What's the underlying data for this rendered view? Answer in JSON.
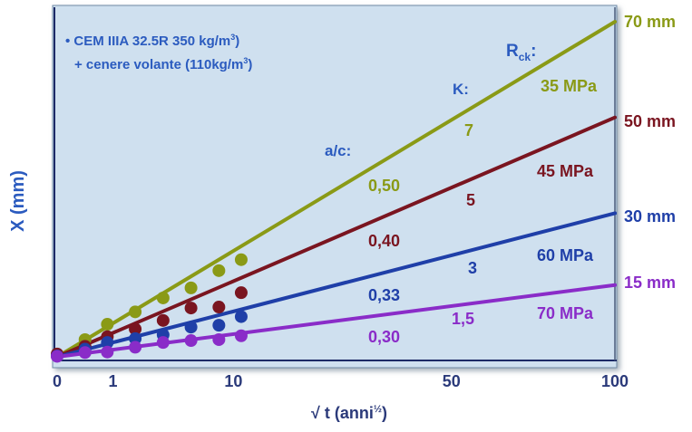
{
  "chart_data": {
    "type": "line",
    "xlabel_main": "√ t (anni",
    "xlabel_sup": "½",
    "xlabel_close": ")",
    "ylabel": "X (mm)",
    "x_ticks": [
      {
        "label": "0",
        "value": 0
      },
      {
        "label": "1",
        "value": 1
      },
      {
        "label": "10",
        "value": 3.16
      },
      {
        "label": "50",
        "value": 7.07
      },
      {
        "label": "100",
        "value": 10
      }
    ],
    "xlim": [
      0,
      10
    ],
    "ylim": [
      0,
      70
    ],
    "legend": {
      "line1_main": "• CEM IIIA 32.5R 350 kg/m",
      "line1_sup": "3",
      "line1_close": ")",
      "line2_main": "+ cenere volante (110kg/m",
      "line2_sup": "3",
      "line2_close": ")"
    },
    "header_ac": "a/c:",
    "header_k": "K:",
    "header_rck_main": "R",
    "header_rck_sub": "ck",
    "header_rck_colon": ":",
    "series": [
      {
        "color": "#8a9a16",
        "ac": "0,50",
        "k": "7",
        "rck": "35 MPa",
        "end_label": "70 mm",
        "line": [
          [
            0,
            0
          ],
          [
            10,
            70
          ]
        ],
        "points": [
          [
            0,
            0.4
          ],
          [
            0.5,
            3.6
          ],
          [
            0.9,
            6.8
          ],
          [
            1.4,
            9.4
          ],
          [
            1.9,
            12.3
          ],
          [
            2.4,
            14.4
          ],
          [
            2.9,
            18.0
          ],
          [
            3.3,
            20.3
          ]
        ]
      },
      {
        "color": "#7a1520",
        "ac": "0,40",
        "k": "5",
        "rck": "45 MPa",
        "end_label": "50 mm",
        "line": [
          [
            0,
            0
          ],
          [
            10,
            50
          ]
        ],
        "points": [
          [
            0,
            0.6
          ],
          [
            0.5,
            2.2
          ],
          [
            0.9,
            4.2
          ],
          [
            1.4,
            5.8
          ],
          [
            1.9,
            7.6
          ],
          [
            2.4,
            10.2
          ],
          [
            2.9,
            10.4
          ],
          [
            3.3,
            13.4
          ]
        ]
      },
      {
        "color": "#1f3fa8",
        "ac": "0,33",
        "k": "3",
        "rck": "60 MPa",
        "end_label": "30 mm",
        "line": [
          [
            0,
            0
          ],
          [
            10,
            30
          ]
        ],
        "points": [
          [
            0,
            0.2
          ],
          [
            0.5,
            1.6
          ],
          [
            0.9,
            3.0
          ],
          [
            1.4,
            3.8
          ],
          [
            1.9,
            4.6
          ],
          [
            2.4,
            6.2
          ],
          [
            2.9,
            6.6
          ],
          [
            3.3,
            8.4
          ]
        ]
      },
      {
        "color": "#8a2cc8",
        "ac": "0,30",
        "k": "1,5",
        "rck": "70 MPa",
        "end_label": "15 mm",
        "line": [
          [
            0,
            0
          ],
          [
            10,
            15
          ]
        ],
        "points": [
          [
            0,
            0.1
          ],
          [
            0.5,
            0.9
          ],
          [
            0.9,
            1.0
          ],
          [
            1.4,
            2.0
          ],
          [
            1.9,
            3.0
          ],
          [
            2.4,
            3.4
          ],
          [
            2.9,
            3.6
          ],
          [
            3.3,
            4.4
          ]
        ]
      }
    ]
  }
}
